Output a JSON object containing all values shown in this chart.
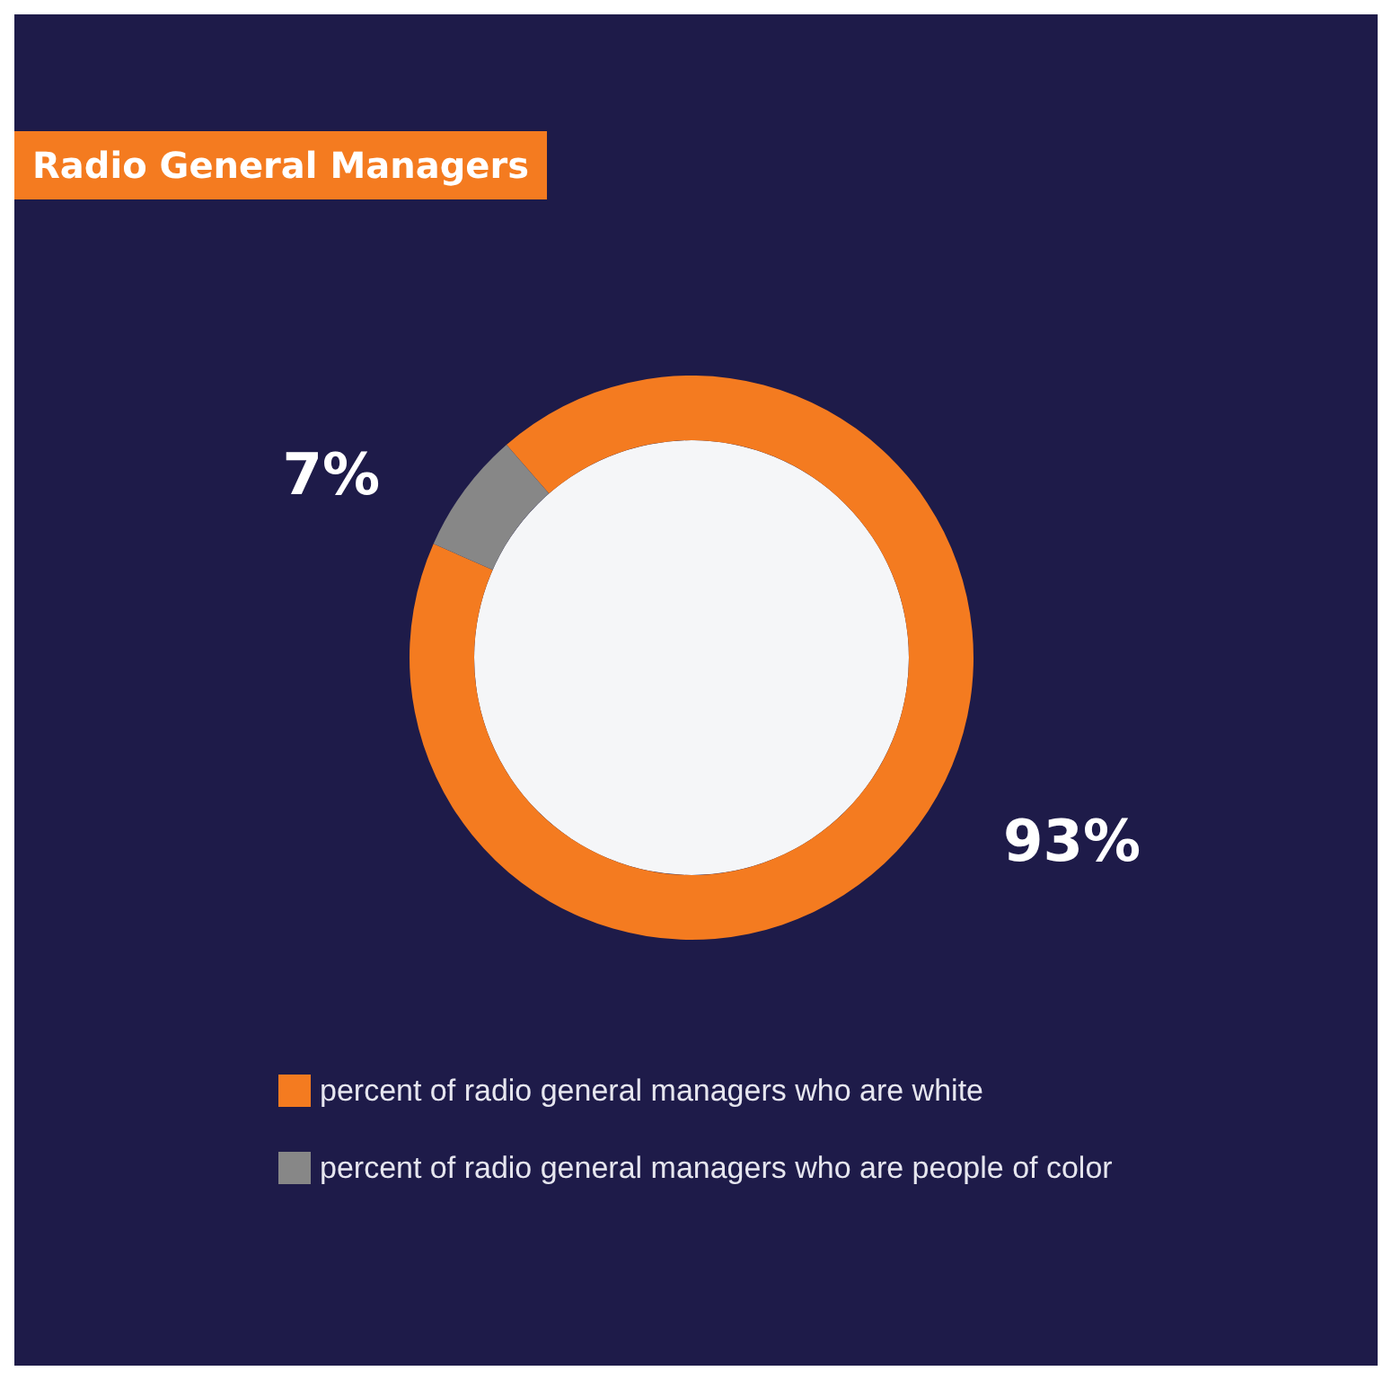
{
  "chart_data": {
    "type": "donut",
    "title": "Radio General Managers",
    "categories": [
      "percent of radio general managers who are white",
      "percent of radio general managers who are people of color"
    ],
    "values": [
      93,
      7
    ],
    "colors": [
      "#f47b20",
      "#878787"
    ],
    "value_labels": [
      "93%",
      "7%"
    ],
    "legend": "bottom"
  }
}
